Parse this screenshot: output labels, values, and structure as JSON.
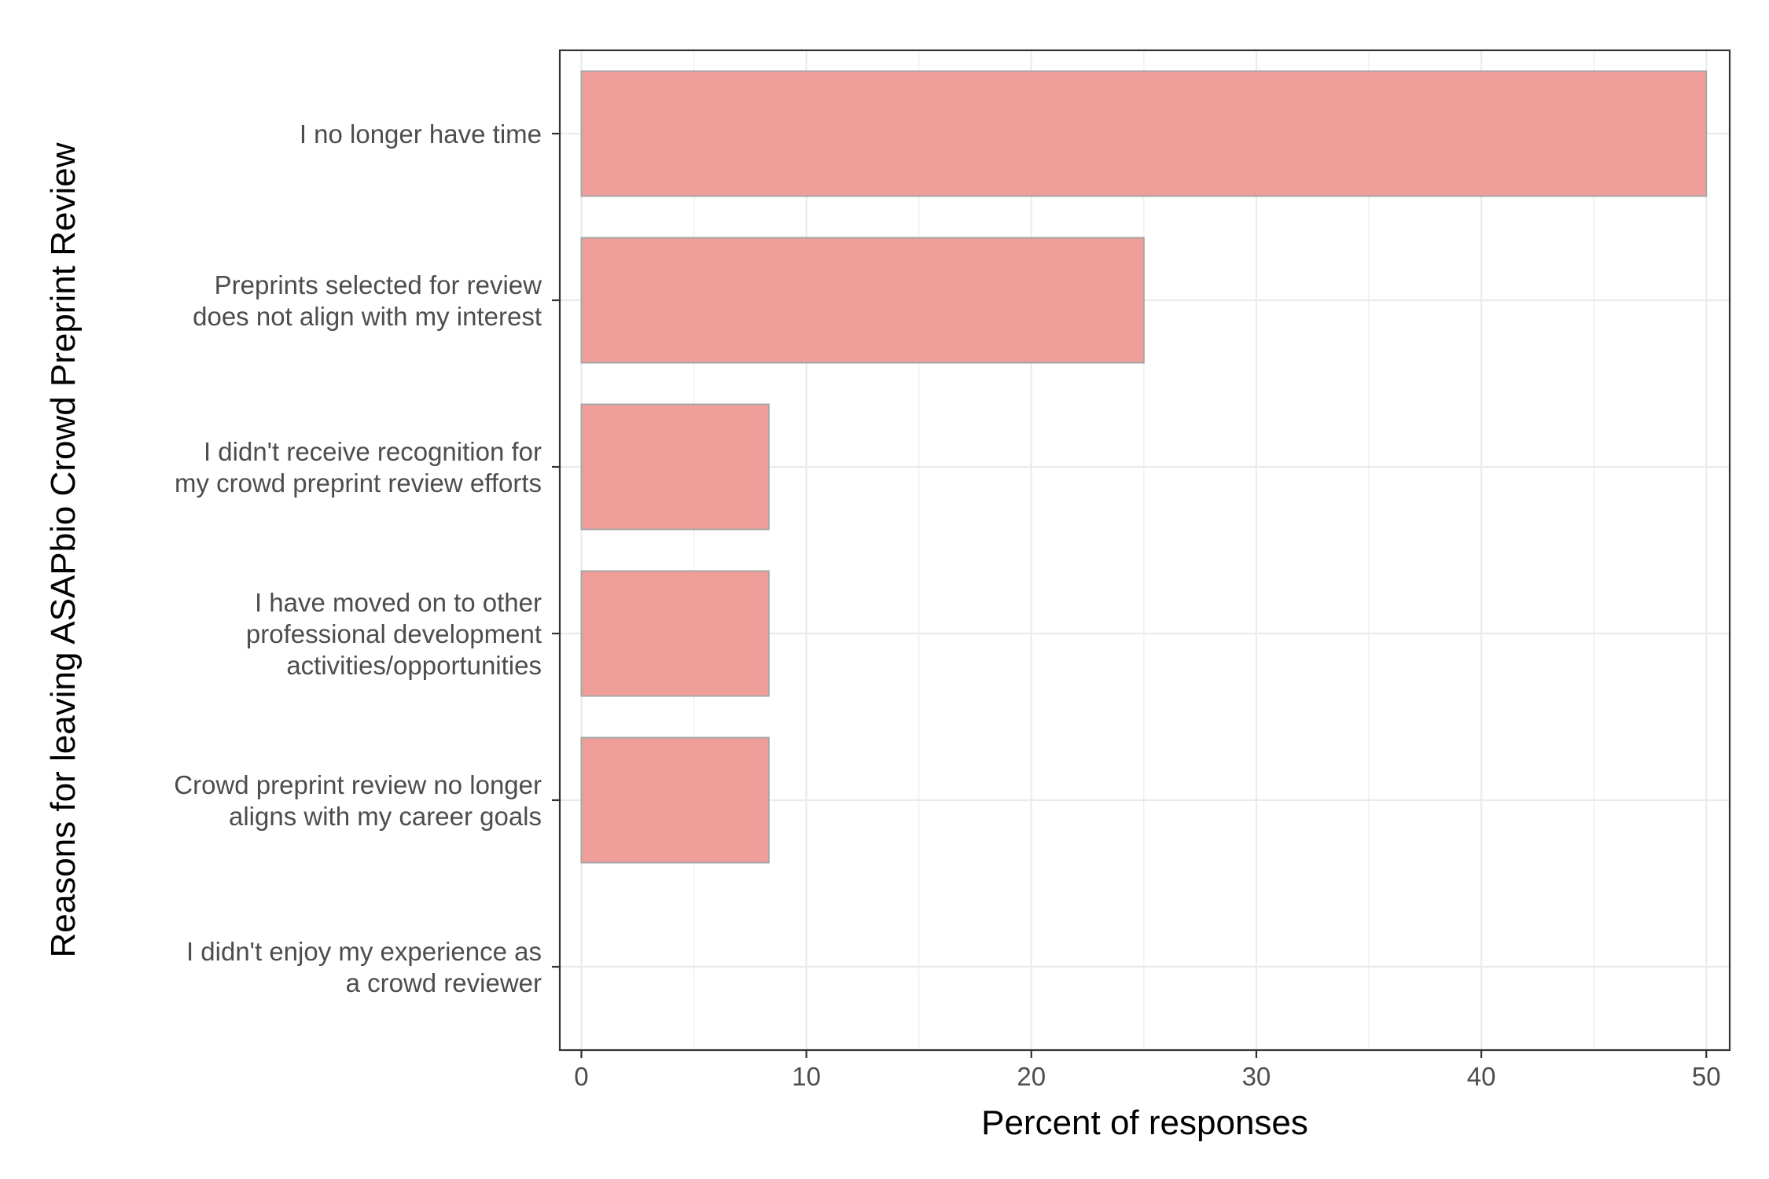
{
  "chart_data": {
    "type": "bar",
    "orientation": "horizontal",
    "categories": [
      [
        "I no longer have time"
      ],
      [
        "Preprints selected for review",
        "does not align with my interest"
      ],
      [
        "I didn't receive recognition for",
        "my crowd preprint review efforts"
      ],
      [
        "I have moved on to other",
        "professional development",
        "activities/opportunities"
      ],
      [
        "Crowd preprint review no longer",
        "aligns with my career goals"
      ],
      [
        "I didn't enjoy my experience as",
        "a crowd reviewer"
      ]
    ],
    "values": [
      50,
      25,
      8.33,
      8.33,
      8.33,
      0
    ],
    "xlabel": "Percent of responses",
    "ylabel": "Reasons for leaving ASAPbio Crowd Preprint Review",
    "xlim": [
      -0.96,
      51.04
    ],
    "x_ticks": [
      0,
      10,
      20,
      30,
      40,
      50
    ],
    "x_minor_ticks": [
      5,
      15,
      25,
      35,
      45
    ],
    "grid": true,
    "legend": "none",
    "colors": {
      "bar_fill": "#f09e99",
      "bar_stroke": "#a6a6a6",
      "grid": "#ebebeb",
      "panel_border": "#333333",
      "tick_text": "#4d4d4d",
      "title_text": "#000000"
    }
  }
}
